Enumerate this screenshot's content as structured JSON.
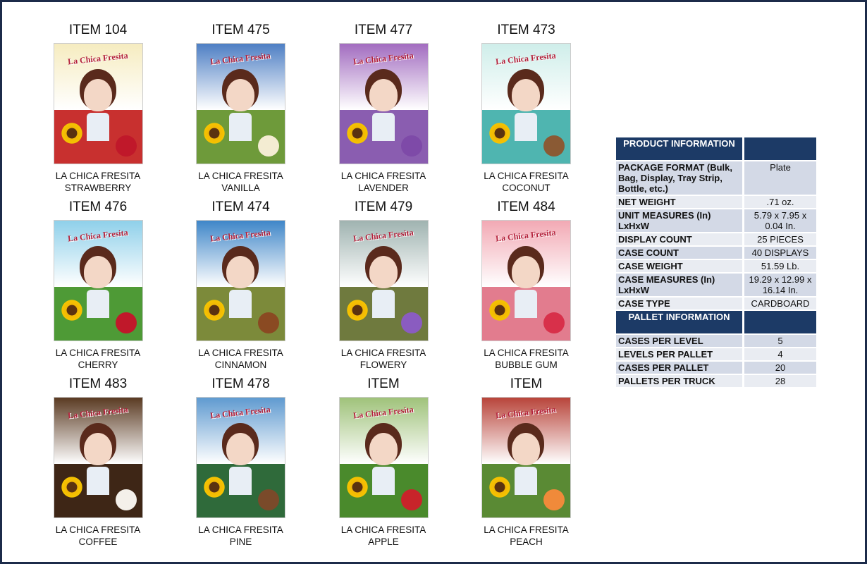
{
  "products": [
    {
      "item": "ITEM 104",
      "brand": "LA CHICA FRESITA",
      "flavor": "STRAWBERRY",
      "sky": "#f6ecc0",
      "ground": "#c8302f",
      "fruit": "#c0182a"
    },
    {
      "item": "ITEM 475",
      "brand": "LA CHICA FRESITA",
      "flavor": "VANILLA",
      "sky": "#4e7fc4",
      "ground": "#6e9a3a",
      "fruit": "#f3ecd2"
    },
    {
      "item": "ITEM 477",
      "brand": "LA CHICA FRESITA",
      "flavor": "LAVENDER",
      "sky": "#a26cc0",
      "ground": "#8a5db0",
      "fruit": "#7e4aa8"
    },
    {
      "item": "ITEM 473",
      "brand": "LA CHICA FRESITA",
      "flavor": "COCONUT",
      "sky": "#cfeeea",
      "ground": "#4fb5b0",
      "fruit": "#8a5a34"
    },
    {
      "item": "ITEM 476",
      "brand": "LA CHICA FRESITA",
      "flavor": "CHERRY",
      "sky": "#8fd0ea",
      "ground": "#4e9a36",
      "fruit": "#c0182a"
    },
    {
      "item": "ITEM 474",
      "brand": "LA CHICA FRESITA",
      "flavor": "CINNAMON",
      "sky": "#3f86c8",
      "ground": "#7c8a3a",
      "fruit": "#8a4a22"
    },
    {
      "item": "ITEM 479",
      "brand": "LA CHICA FRESITA",
      "flavor": "FLOWERY",
      "sky": "#9fb3b0",
      "ground": "#6f7a3e",
      "fruit": "#8a5cc0"
    },
    {
      "item": "ITEM 484",
      "brand": "LA CHICA FRESITA",
      "flavor": "BUBBLE GUM",
      "sky": "#f2a9b4",
      "ground": "#e27c8e",
      "fruit": "#d8304a"
    },
    {
      "item": "ITEM 483",
      "brand": "LA CHICA FRESITA",
      "flavor": "COFFEE",
      "sky": "#5a3a22",
      "ground": "#3e2616",
      "fruit": "#f4f0ea"
    },
    {
      "item": "ITEM 478",
      "brand": "LA CHICA FRESITA",
      "flavor": "PINE",
      "sky": "#5f9ad0",
      "ground": "#2f6a3a",
      "fruit": "#7a4a2a"
    },
    {
      "item": "ITEM",
      "brand": "LA CHICA FRESITA",
      "flavor": "APPLE",
      "sky": "#9fc27a",
      "ground": "#4a8a2c",
      "fruit": "#c8242a"
    },
    {
      "item": "ITEM",
      "brand": "LA CHICA FRESITA",
      "flavor": "PEACH",
      "sky": "#b8443a",
      "ground": "#5a8a34",
      "fruit": "#f08a3a"
    }
  ],
  "logo_text": "La Chica Fresita",
  "product_info": {
    "header": "PRODUCT INFORMATION",
    "rows": [
      {
        "label": "PACKAGE FORMAT (Bulk, Bag, Display,  Tray Strip, Bottle, etc.)",
        "value": "Plate"
      },
      {
        "label": "NET WEIGHT",
        "value": ".71 oz."
      },
      {
        "label": "UNIT MEASURES (In) LxHxW",
        "value": "5.79 x 7.95 x 0.04 In."
      },
      {
        "label": "DISPLAY COUNT",
        "value": "25 PIECES"
      },
      {
        "label": "CASE COUNT",
        "value": "40 DISPLAYS"
      },
      {
        "label": "CASE WEIGHT",
        "value": "51.59 Lb."
      },
      {
        "label": "CASE MEASURES (In) LxHxW",
        "value": "19.29 x 12.99 x 16.14 In."
      },
      {
        "label": "CASE TYPE",
        "value": "CARDBOARD"
      }
    ]
  },
  "pallet_info": {
    "header": "PALLET INFORMATION",
    "rows": [
      {
        "label": "CASES PER LEVEL",
        "value": "5"
      },
      {
        "label": "LEVELS PER PALLET",
        "value": "4"
      },
      {
        "label": "CASES PER PALLET",
        "value": "20"
      },
      {
        "label": "PALLETS PER TRUCK",
        "value": "28"
      }
    ]
  },
  "colors": {
    "header": "#1c3a66",
    "row_dark": "#d3d9e6",
    "row_light": "#e9ecf2",
    "frame": "#1c2b4a"
  }
}
